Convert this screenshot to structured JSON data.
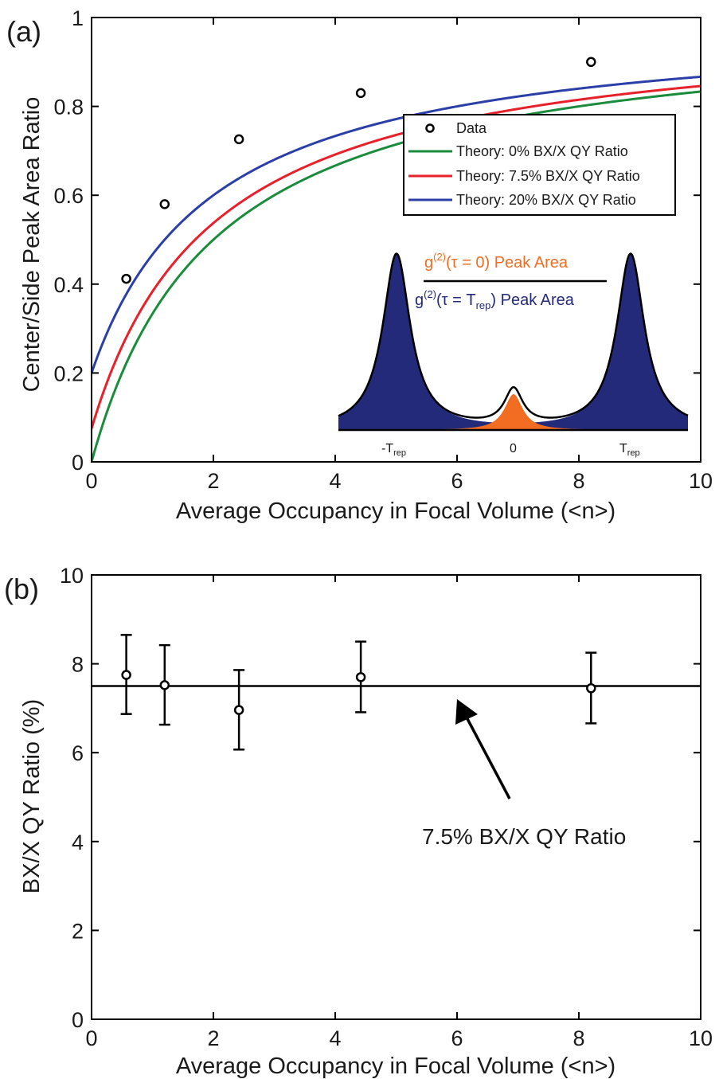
{
  "chart_data": [
    {
      "panel_label": "(a)",
      "type": "line",
      "xlabel": "Average Occupancy in Focal Volume (<n>)",
      "ylabel": "Center/Side Peak Area Ratio",
      "xlim": [
        0,
        10
      ],
      "ylim": [
        0,
        1
      ],
      "xticks": [
        "0",
        "2",
        "4",
        "6",
        "8",
        "10"
      ],
      "yticks": [
        "0",
        "0.2",
        "0.4",
        "0.6",
        "0.8",
        "1"
      ],
      "legend_position": "top-right",
      "scatter": {
        "name": "Data",
        "x": [
          0.57,
          1.2,
          2.42,
          4.42,
          8.2
        ],
        "y": [
          0.412,
          0.58,
          0.726,
          0.83,
          0.9
        ]
      },
      "series": [
        {
          "name": "Theory: 0% BX/X QY Ratio",
          "bx_ratio": 0.0,
          "color": "#1a8c3c"
        },
        {
          "name": "Theory: 7.5% BX/X QY Ratio",
          "bx_ratio": 0.075,
          "color": "#e8202a"
        },
        {
          "name": "Theory: 20% BX/X QY Ratio",
          "bx_ratio": 0.2,
          "color": "#2b3fa8"
        }
      ],
      "inset": {
        "numerator": "Peak Area",
        "denominator": "Peak Area",
        "numerator_color": "#f26d21",
        "denominator_color": "#232a7a",
        "xticks": [
          "-T",
          "0",
          "T"
        ],
        "tick_subscript": "rep"
      }
    },
    {
      "panel_label": "(b)",
      "type": "scatter",
      "xlabel": "Average Occupancy in Focal Volume (<n>)",
      "ylabel": "BX/X QY Ratio (%)",
      "xlim": [
        0,
        10
      ],
      "ylim": [
        0,
        10
      ],
      "xticks": [
        "0",
        "2",
        "4",
        "6",
        "8",
        "10"
      ],
      "yticks": [
        "0",
        "2",
        "4",
        "6",
        "8",
        "10"
      ],
      "points": [
        {
          "x": 0.57,
          "y": 7.75,
          "err_low": 6.87,
          "err_high": 8.65
        },
        {
          "x": 1.2,
          "y": 7.52,
          "err_low": 6.63,
          "err_high": 8.42
        },
        {
          "x": 2.42,
          "y": 6.96,
          "err_low": 6.07,
          "err_high": 7.86
        },
        {
          "x": 4.42,
          "y": 7.7,
          "err_low": 6.91,
          "err_high": 8.5
        },
        {
          "x": 8.2,
          "y": 7.45,
          "err_low": 6.66,
          "err_high": 8.25
        }
      ],
      "reference_line": {
        "y": 7.5
      },
      "annotation": "7.5% BX/X QY Ratio"
    }
  ]
}
